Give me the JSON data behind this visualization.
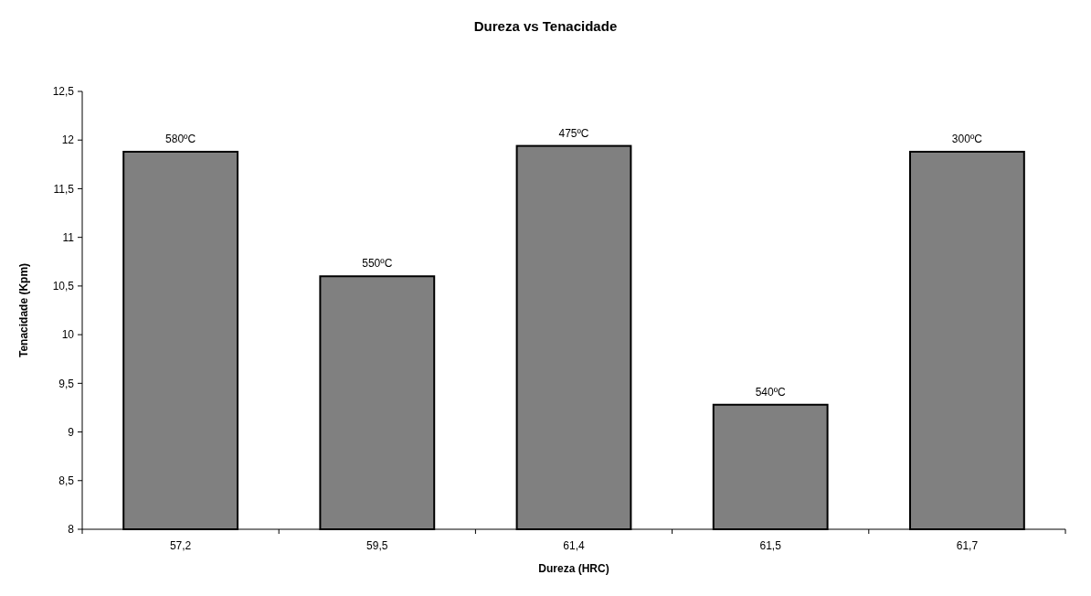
{
  "chart_data": {
    "type": "bar",
    "title": "Dureza vs Tenacidade",
    "xlabel": "Dureza (HRC)",
    "ylabel": "Tenacidade (Kpm)",
    "categories": [
      "57,2",
      "59,5",
      "61,4",
      "61,5",
      "61,7"
    ],
    "values": [
      11.88,
      10.6,
      11.94,
      9.28,
      11.88
    ],
    "annotations": [
      {
        "text": "580ºC",
        "x": "57,2",
        "y": 11.88
      },
      {
        "text": "550ºC",
        "x": "59,5",
        "y": 10.6
      },
      {
        "text": "475ºC",
        "x": "61,4",
        "y": 11.94
      },
      {
        "text": "540ºC",
        "x": "61,5",
        "y": 9.28
      },
      {
        "text": "300ºC",
        "x": "61,7",
        "y": 11.88
      }
    ],
    "color": "#808080",
    "ylim": [
      8,
      12.5
    ],
    "yticks": [
      8,
      {
        "value": 8.5,
        "label": "8,5"
      },
      9,
      {
        "value": 9.5,
        "label": "9,5"
      },
      10,
      {
        "value": 10.5,
        "label": "10,5"
      },
      11,
      {
        "value": 11.5,
        "label": "11,5"
      },
      12,
      {
        "value": 12.5,
        "label": "12,5"
      }
    ],
    "grid": false
  }
}
